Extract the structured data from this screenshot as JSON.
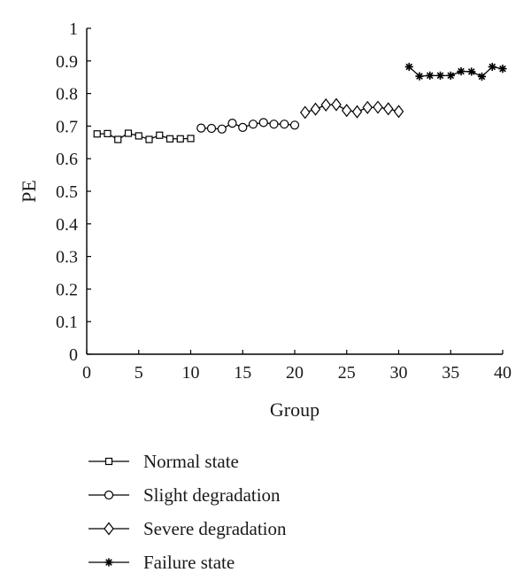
{
  "chart_data": {
    "type": "line",
    "xlabel": "Group",
    "ylabel": "PE",
    "xlim": [
      0,
      40
    ],
    "ylim": [
      0,
      1
    ],
    "x_ticks": [
      0,
      5,
      10,
      15,
      20,
      25,
      30,
      35,
      40
    ],
    "y_ticks": [
      0,
      0.1,
      0.2,
      0.3,
      0.4,
      0.5,
      0.6,
      0.7,
      0.8,
      0.9,
      1
    ],
    "y_tick_labels": [
      "0",
      "0.1",
      "0.2",
      "0.3",
      "0.4",
      "0.5",
      "0.6",
      "0.7",
      "0.8",
      "0.9",
      "1"
    ],
    "grid": false,
    "legend_position": "below",
    "series": [
      {
        "name": "Normal state",
        "marker": "square",
        "x": [
          1,
          2,
          3,
          4,
          5,
          6,
          7,
          8,
          9,
          10
        ],
        "values": [
          0.676,
          0.677,
          0.659,
          0.678,
          0.67,
          0.659,
          0.672,
          0.661,
          0.661,
          0.662
        ]
      },
      {
        "name": "Slight degradation",
        "marker": "circle",
        "x": [
          11,
          12,
          13,
          14,
          15,
          16,
          17,
          18,
          19,
          20
        ],
        "values": [
          0.694,
          0.693,
          0.691,
          0.709,
          0.696,
          0.706,
          0.711,
          0.706,
          0.706,
          0.703
        ]
      },
      {
        "name": "Severe degradation",
        "marker": "diamond",
        "x": [
          21,
          22,
          23,
          24,
          25,
          26,
          27,
          28,
          29,
          30
        ],
        "values": [
          0.742,
          0.752,
          0.765,
          0.766,
          0.748,
          0.744,
          0.757,
          0.758,
          0.753,
          0.745
        ]
      },
      {
        "name": "Failure state",
        "marker": "star",
        "x": [
          31,
          32,
          33,
          34,
          35,
          36,
          37,
          38,
          39,
          40
        ],
        "values": [
          0.882,
          0.853,
          0.855,
          0.855,
          0.855,
          0.868,
          0.867,
          0.852,
          0.882,
          0.876
        ]
      }
    ]
  }
}
